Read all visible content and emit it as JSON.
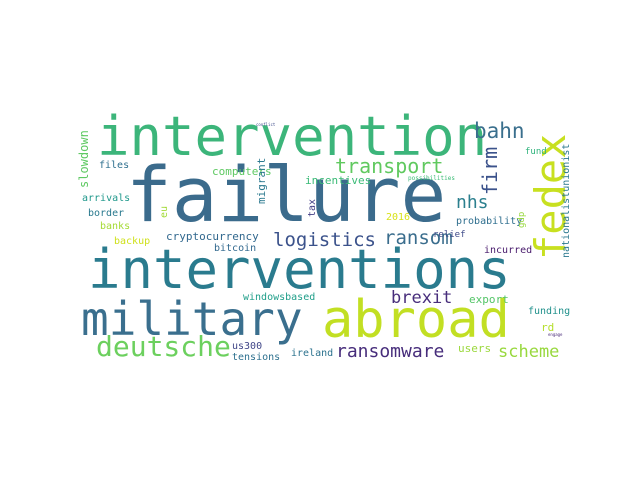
{
  "wordcloud": {
    "words": {
      "failure": "failure",
      "interventions": "interventions",
      "intervention": "intervention",
      "military": "military",
      "abroad": "abroad",
      "fedex": "fedex",
      "deutsche": "deutsche",
      "ransomware": "ransomware",
      "logistics": "logistics",
      "ransom": "ransom",
      "transport": "transport",
      "bahn": "bahn",
      "firm": "firm",
      "nhs": "nhs",
      "brexit": "brexit",
      "scheme": "scheme",
      "export": "export",
      "users": "users",
      "funding": "funding",
      "rd": "rd",
      "probability": "probability",
      "incurred": "incurred",
      "relief": "relief",
      "y2016": "2016",
      "tax": "tax",
      "incentives": "incentives",
      "computers": "computers",
      "cryptocurrency": "cryptocurrency",
      "bitcoin": "bitcoin",
      "backup": "backup",
      "banks": "banks",
      "border": "border",
      "arrivals": "arrivals",
      "files": "files",
      "slowdown": "slowdown",
      "migrant": "migrant",
      "eu": "eu",
      "windowsbased": "windowsbased",
      "us300": "us300",
      "tensions": "tensions",
      "ireland": "ireland",
      "nationalistunionist": "nationalistunionist",
      "gdp": "gdp",
      "fund": "fund",
      "possibilities": "possibilities",
      "conflict": "conflict",
      "engage": "engage"
    }
  }
}
